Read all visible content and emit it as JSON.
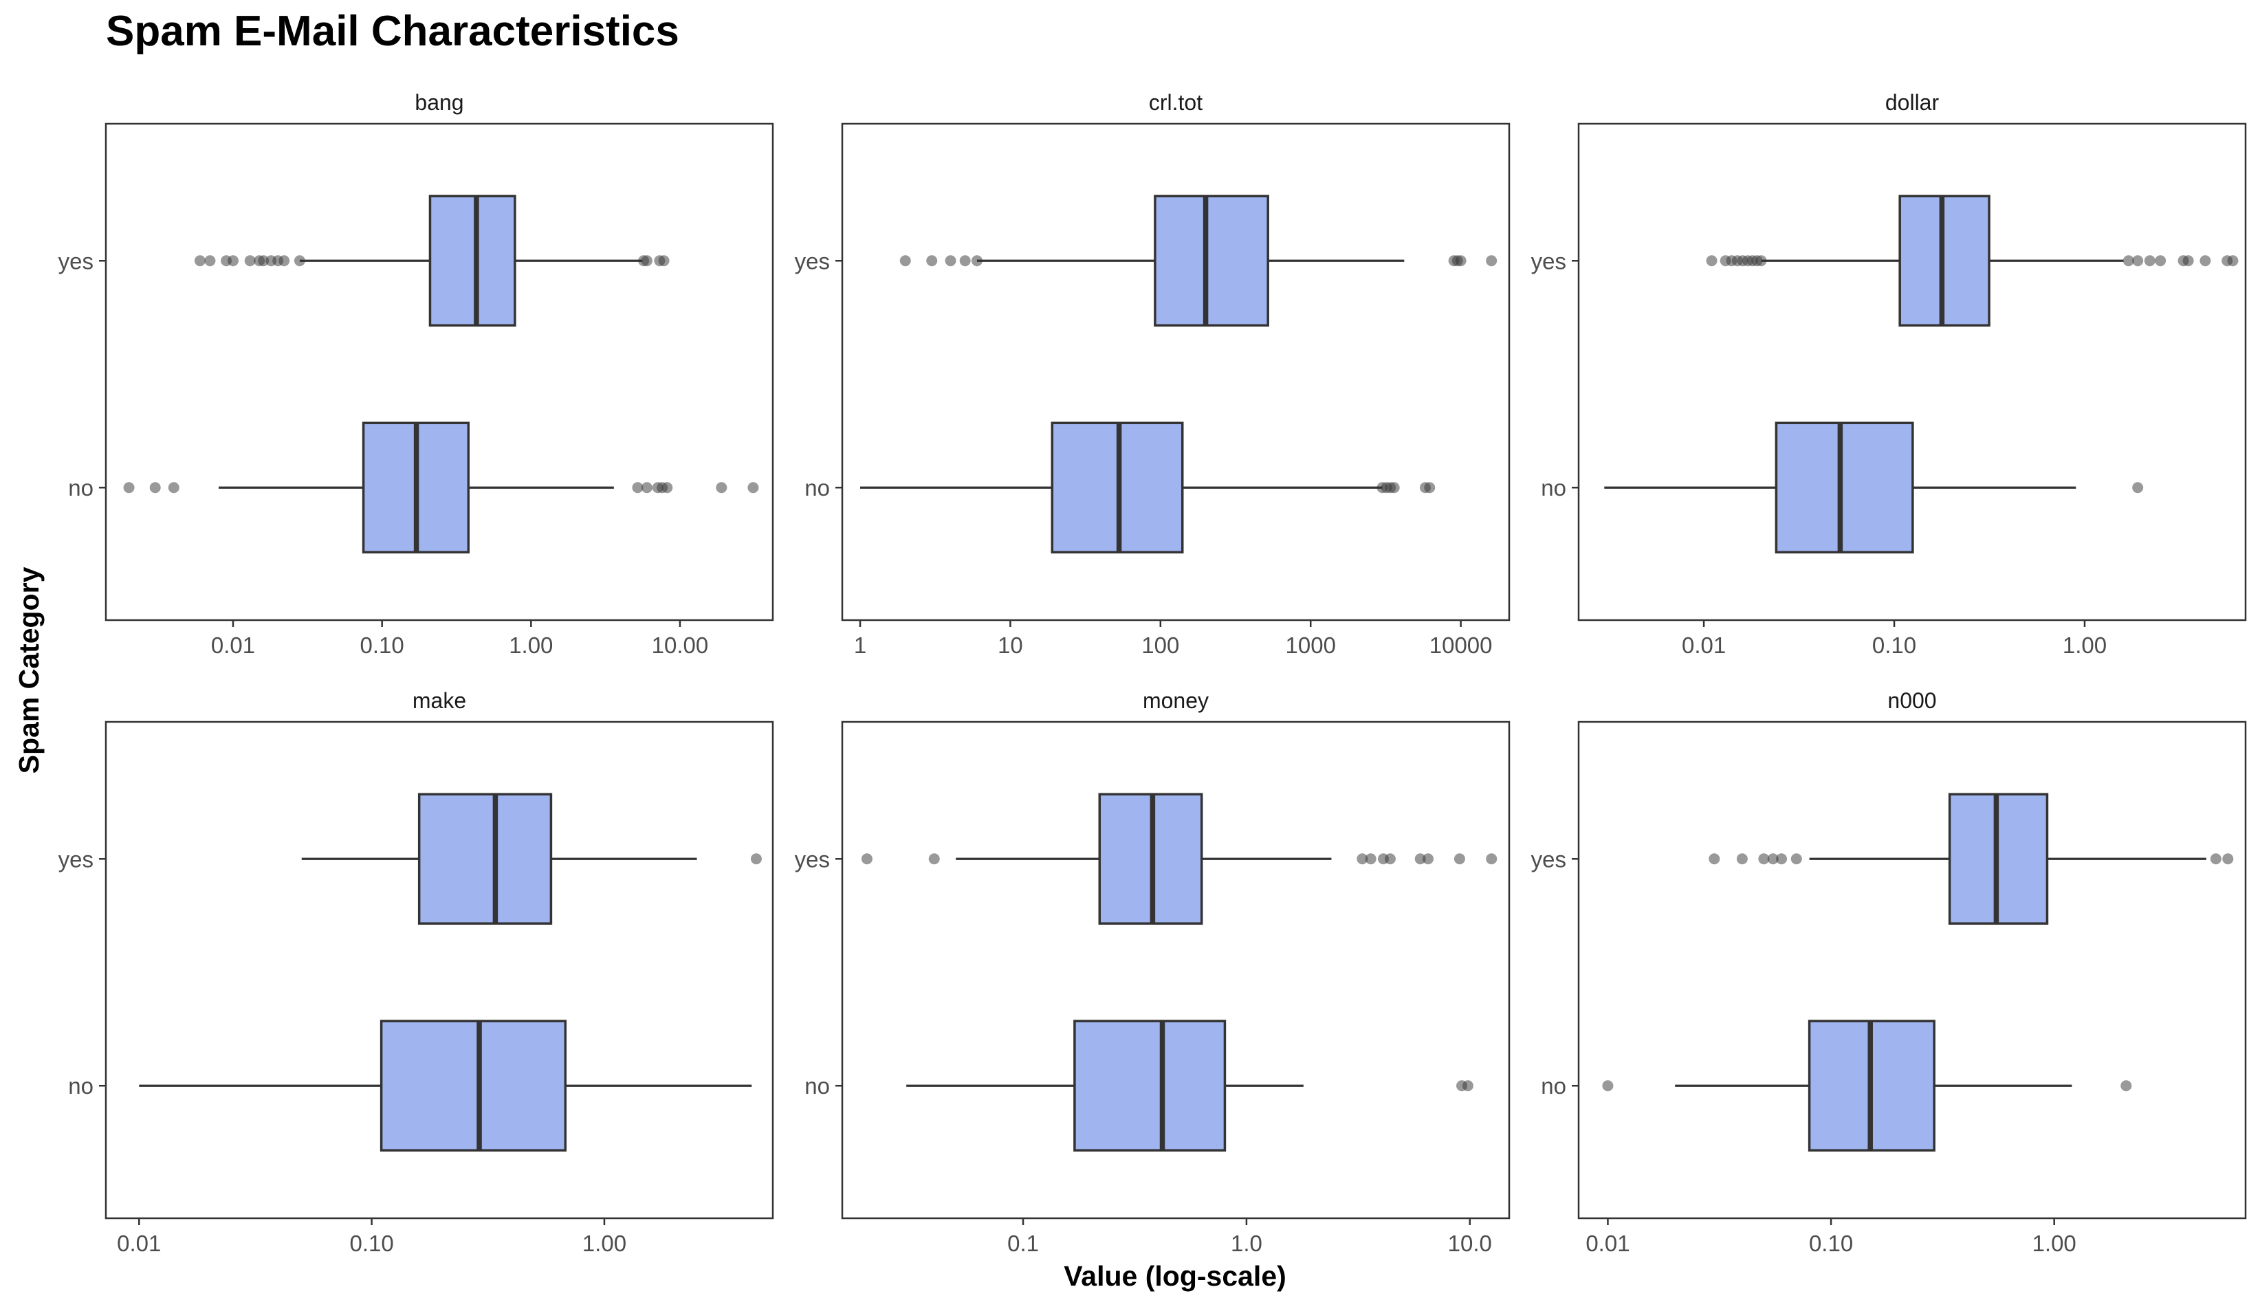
{
  "chart_data": {
    "type": "boxplot",
    "title": "Spam E-Mail Characteristics",
    "xlabel": "Value (log-scale)",
    "ylabel": "Spam Category",
    "x_scale": "log10",
    "categories": [
      "yes",
      "no"
    ],
    "colors": {
      "box_fill": "#a0b4f0",
      "box_stroke": "#333333",
      "outlier": "#333333",
      "panel_border": "#333333"
    },
    "panels": [
      {
        "name": "bang",
        "xlim": [
          0.0014,
          42
        ],
        "ticks": [
          0.01,
          0.1,
          1,
          10
        ],
        "tick_labels": [
          "0.01",
          "0.10",
          "1.00",
          "10.00"
        ],
        "groups": [
          {
            "category": "yes",
            "lower": 0.028,
            "q1": 0.21,
            "median": 0.43,
            "q3": 0.78,
            "upper": 5.6,
            "outliers": [
              0.006,
              0.007,
              0.009,
              0.01,
              0.013,
              0.015,
              0.016,
              0.018,
              0.02,
              0.022,
              0.028,
              5.7,
              6.0,
              7.3,
              7.8
            ]
          },
          {
            "category": "no",
            "lower": 0.008,
            "q1": 0.075,
            "median": 0.17,
            "q3": 0.38,
            "upper": 3.6,
            "outliers": [
              0.002,
              0.003,
              0.004,
              5.2,
              6.0,
              7.1,
              7.6,
              8.2,
              19.0,
              31.0
            ]
          }
        ]
      },
      {
        "name": "crl.tot",
        "xlim": [
          0.76,
          21000
        ],
        "ticks": [
          1,
          10,
          100,
          1000,
          10000
        ],
        "tick_labels": [
          "1",
          "10",
          "100",
          "1000",
          "10000"
        ],
        "groups": [
          {
            "category": "yes",
            "lower": 6,
            "q1": 92,
            "median": 200,
            "q3": 520,
            "upper": 4200,
            "outliers": [
              2,
              3,
              4,
              5,
              6,
              9000,
              9500,
              10000,
              16000
            ]
          },
          {
            "category": "no",
            "lower": 1,
            "q1": 19,
            "median": 53,
            "q3": 140,
            "upper": 3000,
            "outliers": [
              3000,
              3200,
              3400,
              3600,
              5800,
              6200
            ]
          }
        ]
      },
      {
        "name": "dollar",
        "xlim": [
          0.0022,
          7
        ],
        "ticks": [
          0.01,
          0.1,
          1
        ],
        "tick_labels": [
          "0.01",
          "0.10",
          "1.00"
        ],
        "groups": [
          {
            "category": "yes",
            "lower": 0.02,
            "q1": 0.107,
            "median": 0.178,
            "q3": 0.315,
            "upper": 1.6,
            "outliers": [
              0.011,
              0.013,
              0.014,
              0.015,
              0.016,
              0.017,
              0.018,
              0.019,
              0.02,
              1.7,
              1.9,
              2.2,
              2.5,
              3.3,
              3.5,
              4.3,
              5.6,
              6.0
            ]
          },
          {
            "category": "no",
            "lower": 0.003,
            "q1": 0.024,
            "median": 0.052,
            "q3": 0.125,
            "upper": 0.9,
            "outliers": [
              1.9
            ]
          }
        ]
      },
      {
        "name": "make",
        "xlim": [
          0.0072,
          5.3
        ],
        "ticks": [
          0.01,
          0.1,
          1
        ],
        "tick_labels": [
          "0.01",
          "0.10",
          "1.00"
        ],
        "groups": [
          {
            "category": "yes",
            "lower": 0.05,
            "q1": 0.16,
            "median": 0.34,
            "q3": 0.59,
            "upper": 2.5,
            "outliers": [
              4.5
            ]
          },
          {
            "category": "no",
            "lower": 0.01,
            "q1": 0.11,
            "median": 0.29,
            "q3": 0.68,
            "upper": 4.3,
            "outliers": []
          }
        ]
      },
      {
        "name": "money",
        "xlim": [
          0.0155,
          15
        ],
        "ticks": [
          0.1,
          1,
          10
        ],
        "tick_labels": [
          "0.1",
          "1.0",
          "10.0"
        ],
        "groups": [
          {
            "category": "yes",
            "lower": 0.05,
            "q1": 0.22,
            "median": 0.38,
            "q3": 0.63,
            "upper": 2.4,
            "outliers": [
              0.02,
              0.04,
              3.3,
              3.6,
              4.1,
              4.4,
              6.0,
              6.5,
              9.0,
              12.5
            ]
          },
          {
            "category": "no",
            "lower": 0.03,
            "q1": 0.17,
            "median": 0.42,
            "q3": 0.8,
            "upper": 1.8,
            "outliers": [
              9.2,
              9.8
            ]
          }
        ]
      },
      {
        "name": "n000",
        "xlim": [
          0.0074,
          7.2
        ],
        "ticks": [
          0.01,
          0.1,
          1
        ],
        "tick_labels": [
          "0.01",
          "0.10",
          "1.00"
        ],
        "groups": [
          {
            "category": "yes",
            "lower": 0.08,
            "q1": 0.34,
            "median": 0.55,
            "q3": 0.93,
            "upper": 4.8,
            "outliers": [
              0.03,
              0.04,
              0.05,
              0.055,
              0.06,
              0.07,
              5.3,
              6.0
            ]
          },
          {
            "category": "no",
            "lower": 0.02,
            "q1": 0.08,
            "median": 0.15,
            "q3": 0.29,
            "upper": 1.2,
            "outliers": [
              0.01,
              2.1
            ]
          }
        ]
      }
    ]
  }
}
